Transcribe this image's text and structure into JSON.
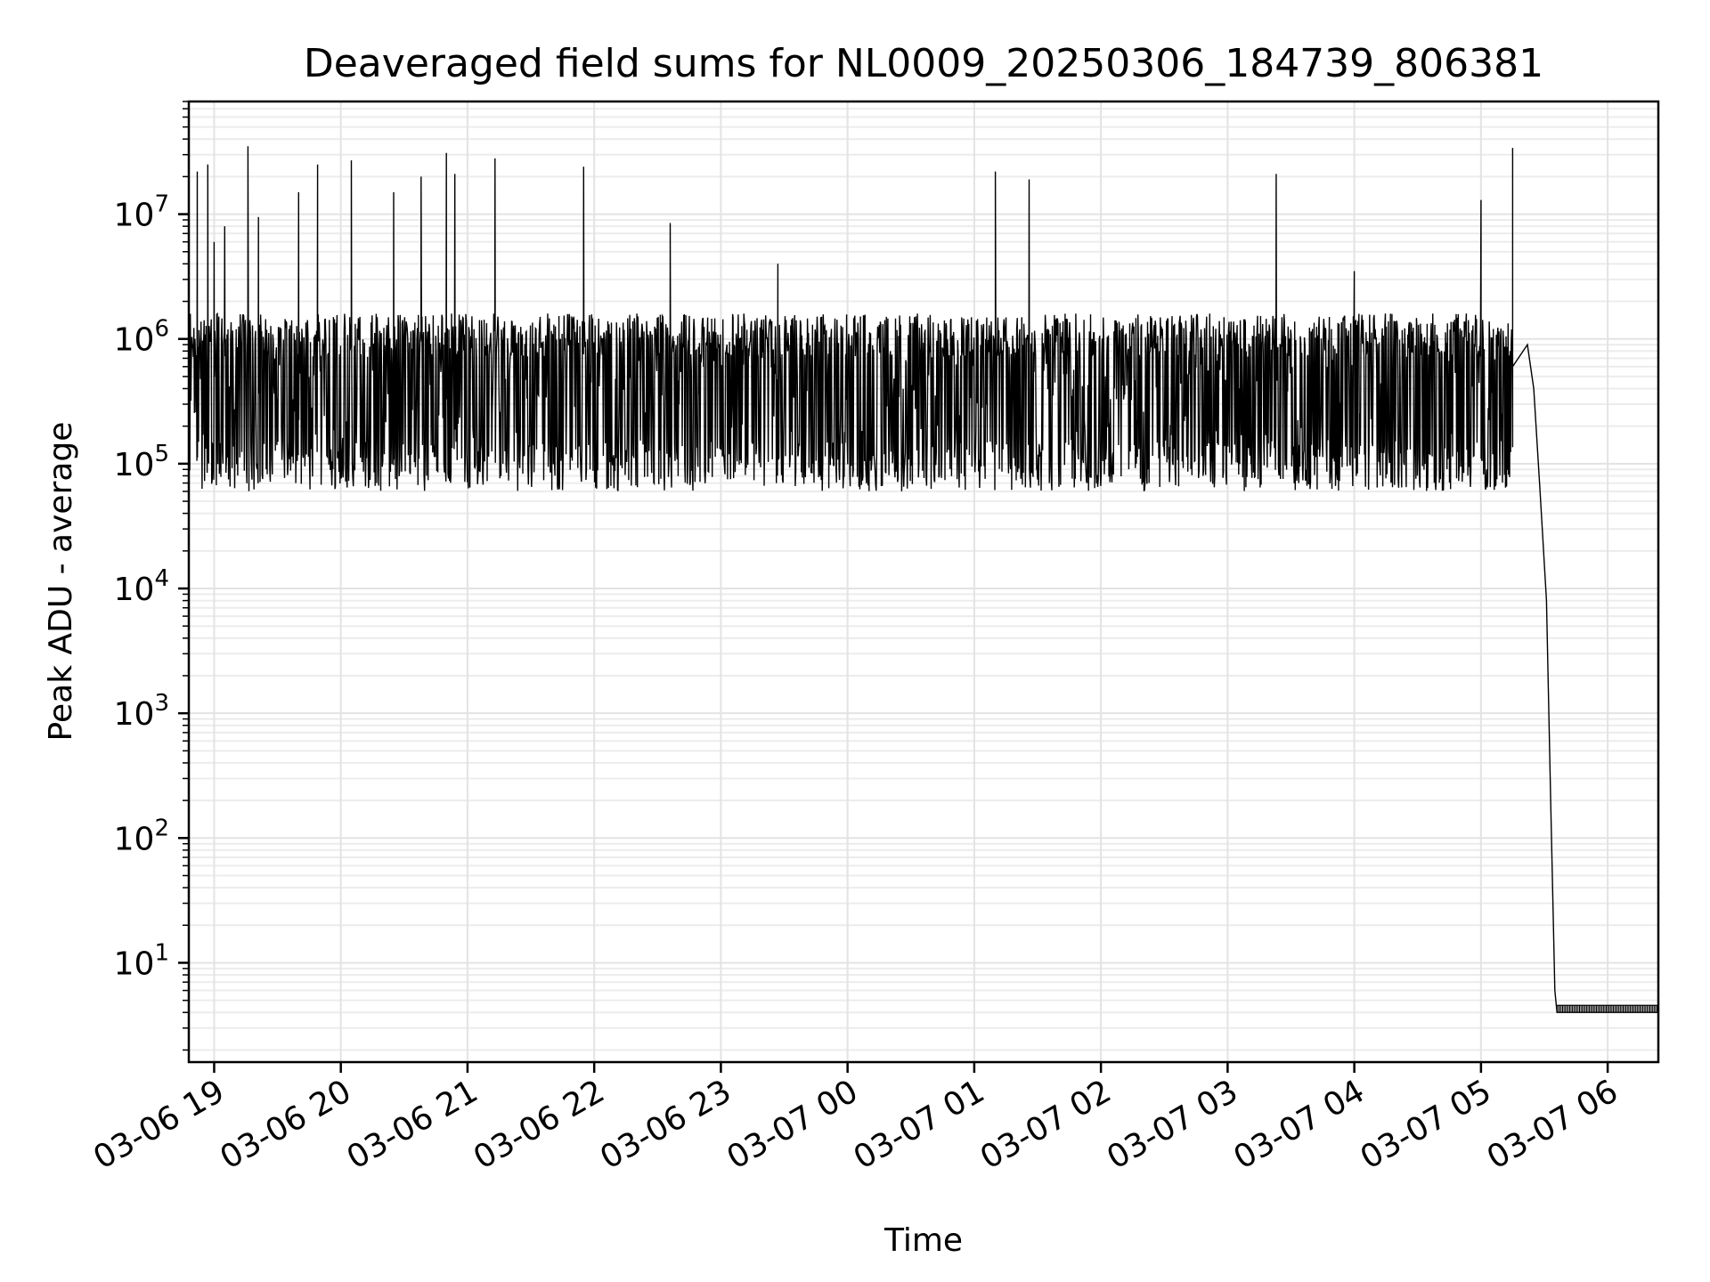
{
  "chart_data": {
    "type": "line",
    "title": "Deaveraged field sums for NL0009_20250306_184739_806381",
    "xlabel": "Time",
    "ylabel": "Peak ADU - average",
    "yscale": "log",
    "ylim": [
      1.6,
      80000000
    ],
    "xlim": [
      "2025-03-06 18:48",
      "2025-03-07 06:24"
    ],
    "grid": true,
    "colors": {
      "line": "#000000",
      "grid": "#e3e3e3",
      "frame": "#000000"
    },
    "xticks": [
      {
        "t": "2025-03-06 19:00",
        "label": "03-06 19"
      },
      {
        "t": "2025-03-06 20:00",
        "label": "03-06 20"
      },
      {
        "t": "2025-03-06 21:00",
        "label": "03-06 21"
      },
      {
        "t": "2025-03-06 22:00",
        "label": "03-06 22"
      },
      {
        "t": "2025-03-06 23:00",
        "label": "03-06 23"
      },
      {
        "t": "2025-03-07 00:00",
        "label": "03-07 00"
      },
      {
        "t": "2025-03-07 01:00",
        "label": "03-07 01"
      },
      {
        "t": "2025-03-07 02:00",
        "label": "03-07 02"
      },
      {
        "t": "2025-03-07 03:00",
        "label": "03-07 03"
      },
      {
        "t": "2025-03-07 04:00",
        "label": "03-07 04"
      },
      {
        "t": "2025-03-07 05:00",
        "label": "03-07 05"
      },
      {
        "t": "2025-03-07 06:00",
        "label": "03-07 06"
      }
    ],
    "yticks": [
      {
        "value": 10,
        "base": "10",
        "exp": "1"
      },
      {
        "value": 100,
        "base": "10",
        "exp": "2"
      },
      {
        "value": 1000,
        "base": "10",
        "exp": "3"
      },
      {
        "value": 10000,
        "base": "10",
        "exp": "4"
      },
      {
        "value": 100000,
        "base": "10",
        "exp": "5"
      },
      {
        "value": 1000000,
        "base": "10",
        "exp": "6"
      },
      {
        "value": 10000000,
        "base": "10",
        "exp": "7"
      }
    ],
    "series": [
      {
        "style": "dense noisy band between ~6e4 and ~1.6e6 with occasional spikes, then sharp drop to ~4 at 05:35",
        "band": {
          "low": 60000,
          "high": 1600000,
          "start": "2025-03-06 18:48",
          "end": "2025-03-07 05:15"
        },
        "spikes": [
          {
            "t": "2025-03-06 18:52",
            "y": 22000000
          },
          {
            "t": "2025-03-06 18:57",
            "y": 25000000
          },
          {
            "t": "2025-03-06 19:00",
            "y": 6000000
          },
          {
            "t": "2025-03-06 19:05",
            "y": 8000000
          },
          {
            "t": "2025-03-06 19:16",
            "y": 35000000
          },
          {
            "t": "2025-03-06 19:21",
            "y": 9500000
          },
          {
            "t": "2025-03-06 19:40",
            "y": 15000000
          },
          {
            "t": "2025-03-06 19:49",
            "y": 25000000
          },
          {
            "t": "2025-03-06 20:05",
            "y": 27000000
          },
          {
            "t": "2025-03-06 20:25",
            "y": 15000000
          },
          {
            "t": "2025-03-06 20:38",
            "y": 20000000
          },
          {
            "t": "2025-03-06 20:50",
            "y": 31000000
          },
          {
            "t": "2025-03-06 20:54",
            "y": 21000000
          },
          {
            "t": "2025-03-06 21:13",
            "y": 28000000
          },
          {
            "t": "2025-03-06 21:55",
            "y": 24000000
          },
          {
            "t": "2025-03-06 22:36",
            "y": 8500000
          },
          {
            "t": "2025-03-06 23:27",
            "y": 4000000
          },
          {
            "t": "2025-03-07 01:10",
            "y": 22000000
          },
          {
            "t": "2025-03-07 01:26",
            "y": 19000000
          },
          {
            "t": "2025-03-07 03:23",
            "y": 21000000
          },
          {
            "t": "2025-03-07 04:00",
            "y": 3500000
          },
          {
            "t": "2025-03-07 05:00",
            "y": 13000000
          },
          {
            "t": "2025-03-07 05:15",
            "y": 34000000
          }
        ],
        "tail": [
          {
            "t": "2025-03-07 05:15",
            "y": 600000
          },
          {
            "t": "2025-03-07 05:22",
            "y": 900000
          },
          {
            "t": "2025-03-07 05:25",
            "y": 400000
          },
          {
            "t": "2025-03-07 05:28",
            "y": 60000
          },
          {
            "t": "2025-03-07 05:31",
            "y": 8000
          },
          {
            "t": "2025-03-07 05:33",
            "y": 200
          },
          {
            "t": "2025-03-07 05:35",
            "y": 6
          },
          {
            "t": "2025-03-07 05:36",
            "y": 4
          },
          {
            "t": "2025-03-07 06:24",
            "y": 4
          }
        ]
      }
    ]
  }
}
